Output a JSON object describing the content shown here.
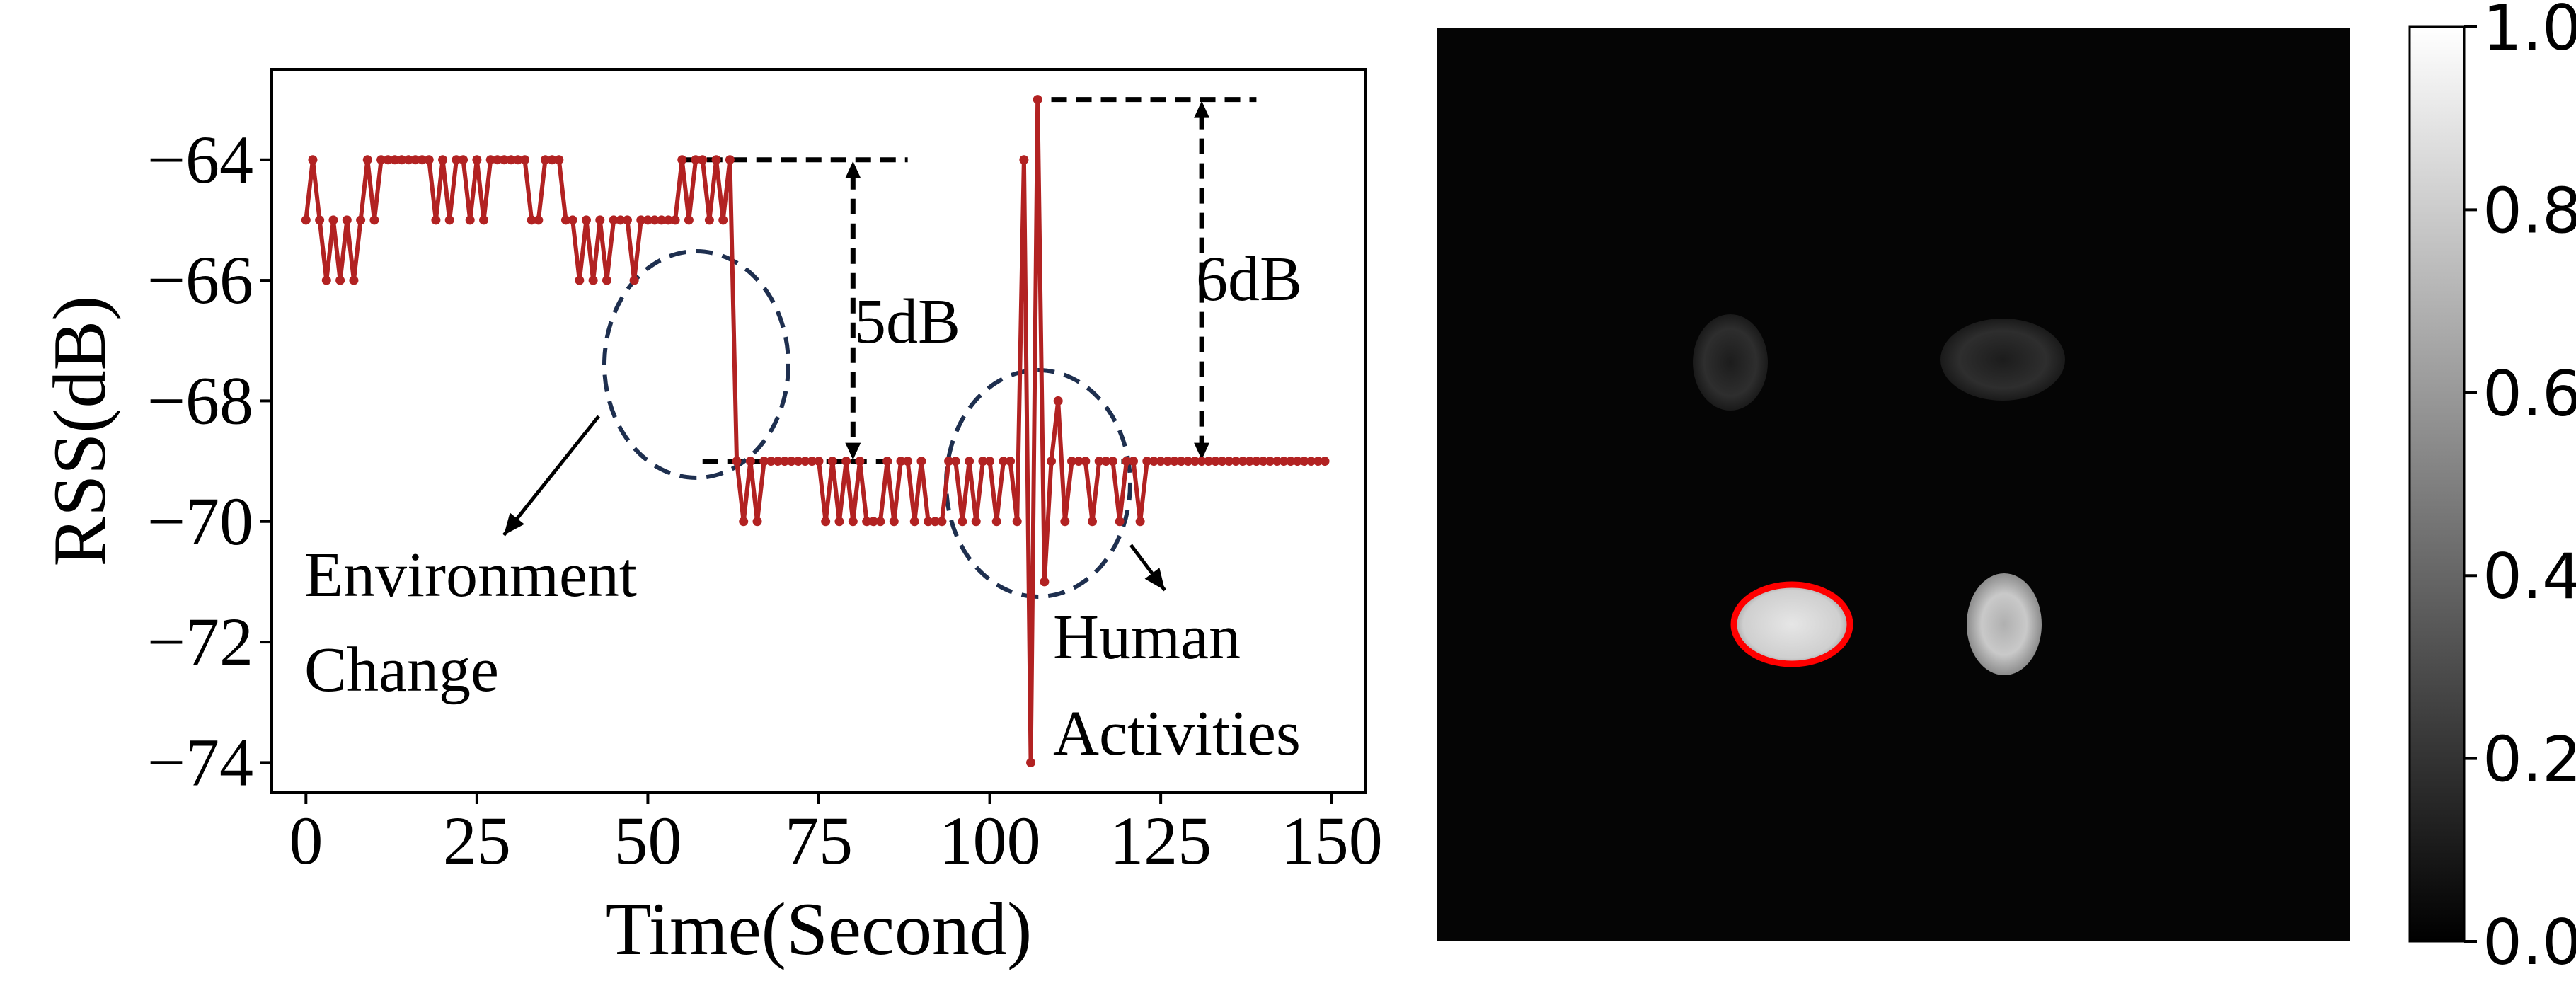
{
  "chart_data": [
    {
      "type": "line",
      "xlabel": "Time(Second)",
      "ylabel": "RSS(dB)",
      "xlim": [
        -5,
        155
      ],
      "ylim": [
        -74.5,
        -62.5
      ],
      "xticks": [
        0,
        25,
        50,
        75,
        100,
        125,
        150
      ],
      "yticks": [
        -64,
        -66,
        -68,
        -70,
        -72,
        -74
      ],
      "xtick_labels": [
        "0",
        "25",
        "50",
        "75",
        "100",
        "125",
        "150"
      ],
      "ytick_labels": [
        "−64",
        "−66",
        "−68",
        "−70",
        "−72",
        "−74"
      ],
      "grid": false,
      "series": [
        {
          "color": "#b22222",
          "x": [
            0,
            1,
            2,
            3,
            4,
            5,
            6,
            7,
            8,
            9,
            10,
            11,
            12,
            13,
            14,
            15,
            16,
            17,
            18,
            19,
            20,
            21,
            22,
            23,
            24,
            25,
            26,
            27,
            28,
            29,
            30,
            31,
            32,
            33,
            34,
            35,
            36,
            37,
            38,
            39,
            40,
            41,
            42,
            43,
            44,
            45,
            46,
            47,
            48,
            49,
            50,
            51,
            52,
            53,
            54,
            55,
            56,
            57,
            58,
            59,
            60,
            61,
            62,
            63,
            64,
            65,
            66,
            67,
            68,
            69,
            70,
            71,
            72,
            73,
            74,
            75,
            76,
            77,
            78,
            79,
            80,
            81,
            82,
            83,
            84,
            85,
            86,
            87,
            88,
            89,
            90,
            91,
            92,
            93,
            94,
            95,
            96,
            97,
            98,
            99,
            100,
            101,
            102,
            103,
            104,
            105,
            106,
            107,
            108,
            109,
            110,
            111,
            112,
            113,
            114,
            115,
            116,
            117,
            118,
            119,
            120,
            121,
            122,
            123,
            124,
            125,
            126,
            127,
            128,
            129,
            130,
            131,
            132,
            133,
            134,
            135,
            136,
            137,
            138,
            139,
            140,
            141,
            142,
            143,
            144,
            145,
            146,
            147,
            148,
            149
          ],
          "y": [
            -65,
            -64,
            -65,
            -66,
            -65,
            -66,
            -65,
            -66,
            -65,
            -64,
            -65,
            -64,
            -64,
            -64,
            -64,
            -64,
            -64,
            -64,
            -64,
            -65,
            -64,
            -65,
            -64,
            -64,
            -65,
            -64,
            -65,
            -64,
            -64,
            -64,
            -64,
            -64,
            -64,
            -65,
            -65,
            -64,
            -64,
            -64,
            -65,
            -65,
            -66,
            -65,
            -66,
            -65,
            -66,
            -65,
            -65,
            -65,
            -66,
            -65,
            -65,
            -65,
            -65,
            -65,
            -65,
            -64,
            -65,
            -64,
            -64,
            -65,
            -64,
            -65,
            -64,
            -69,
            -70,
            -69,
            -70,
            -69,
            -69,
            -69,
            -69,
            -69,
            -69,
            -69,
            -69,
            -69,
            -70,
            -69,
            -70,
            -69,
            -70,
            -69,
            -70,
            -70,
            -70,
            -69,
            -70,
            -69,
            -69,
            -70,
            -69,
            -70,
            -70,
            -70,
            -69,
            -69,
            -70,
            -69,
            -70,
            -69,
            -69,
            -70,
            -69,
            -69,
            -70,
            -64,
            -74,
            -63,
            -71,
            -69,
            -68,
            -70,
            -69,
            -69,
            -69,
            -70,
            -69,
            -69,
            -69,
            -70,
            -69,
            -69,
            -70,
            -69,
            -69,
            -69,
            -69,
            -69,
            -69,
            -69,
            -69,
            -69,
            -69,
            -69,
            -69,
            -69,
            -69,
            -69,
            -69,
            -69,
            -69,
            -69,
            -69,
            -69,
            -69,
            -69,
            -69,
            -69,
            -69,
            -69
          ]
        }
      ],
      "annotations": {
        "env_label_line1": "Environment",
        "env_label_line2": "Change",
        "human_label_line1": "Human",
        "human_label_line2": "Activities",
        "gap1": "5dB",
        "gap2": "6dB",
        "gap1_top": -64,
        "gap1_bottom": -69,
        "gap2_top": -63,
        "gap2_bottom": -69
      }
    },
    {
      "type": "heatmap",
      "colormap": "gray",
      "clim": [
        0.0,
        1.0
      ],
      "colorbar_ticks": [
        0.0,
        0.2,
        0.4,
        0.6,
        0.8,
        1.0
      ],
      "colorbar_labels": [
        "0.0",
        "0.2",
        "0.4",
        "0.6",
        "0.8",
        "1.0"
      ],
      "highlight_color": "#ff0000",
      "blobs": [
        {
          "region": "upper-left",
          "intensity": 0.15
        },
        {
          "region": "upper-right",
          "intensity": 0.12
        },
        {
          "region": "lower-left",
          "intensity": 0.85,
          "highlighted": true
        },
        {
          "region": "lower-right",
          "intensity": 0.75
        }
      ]
    }
  ]
}
